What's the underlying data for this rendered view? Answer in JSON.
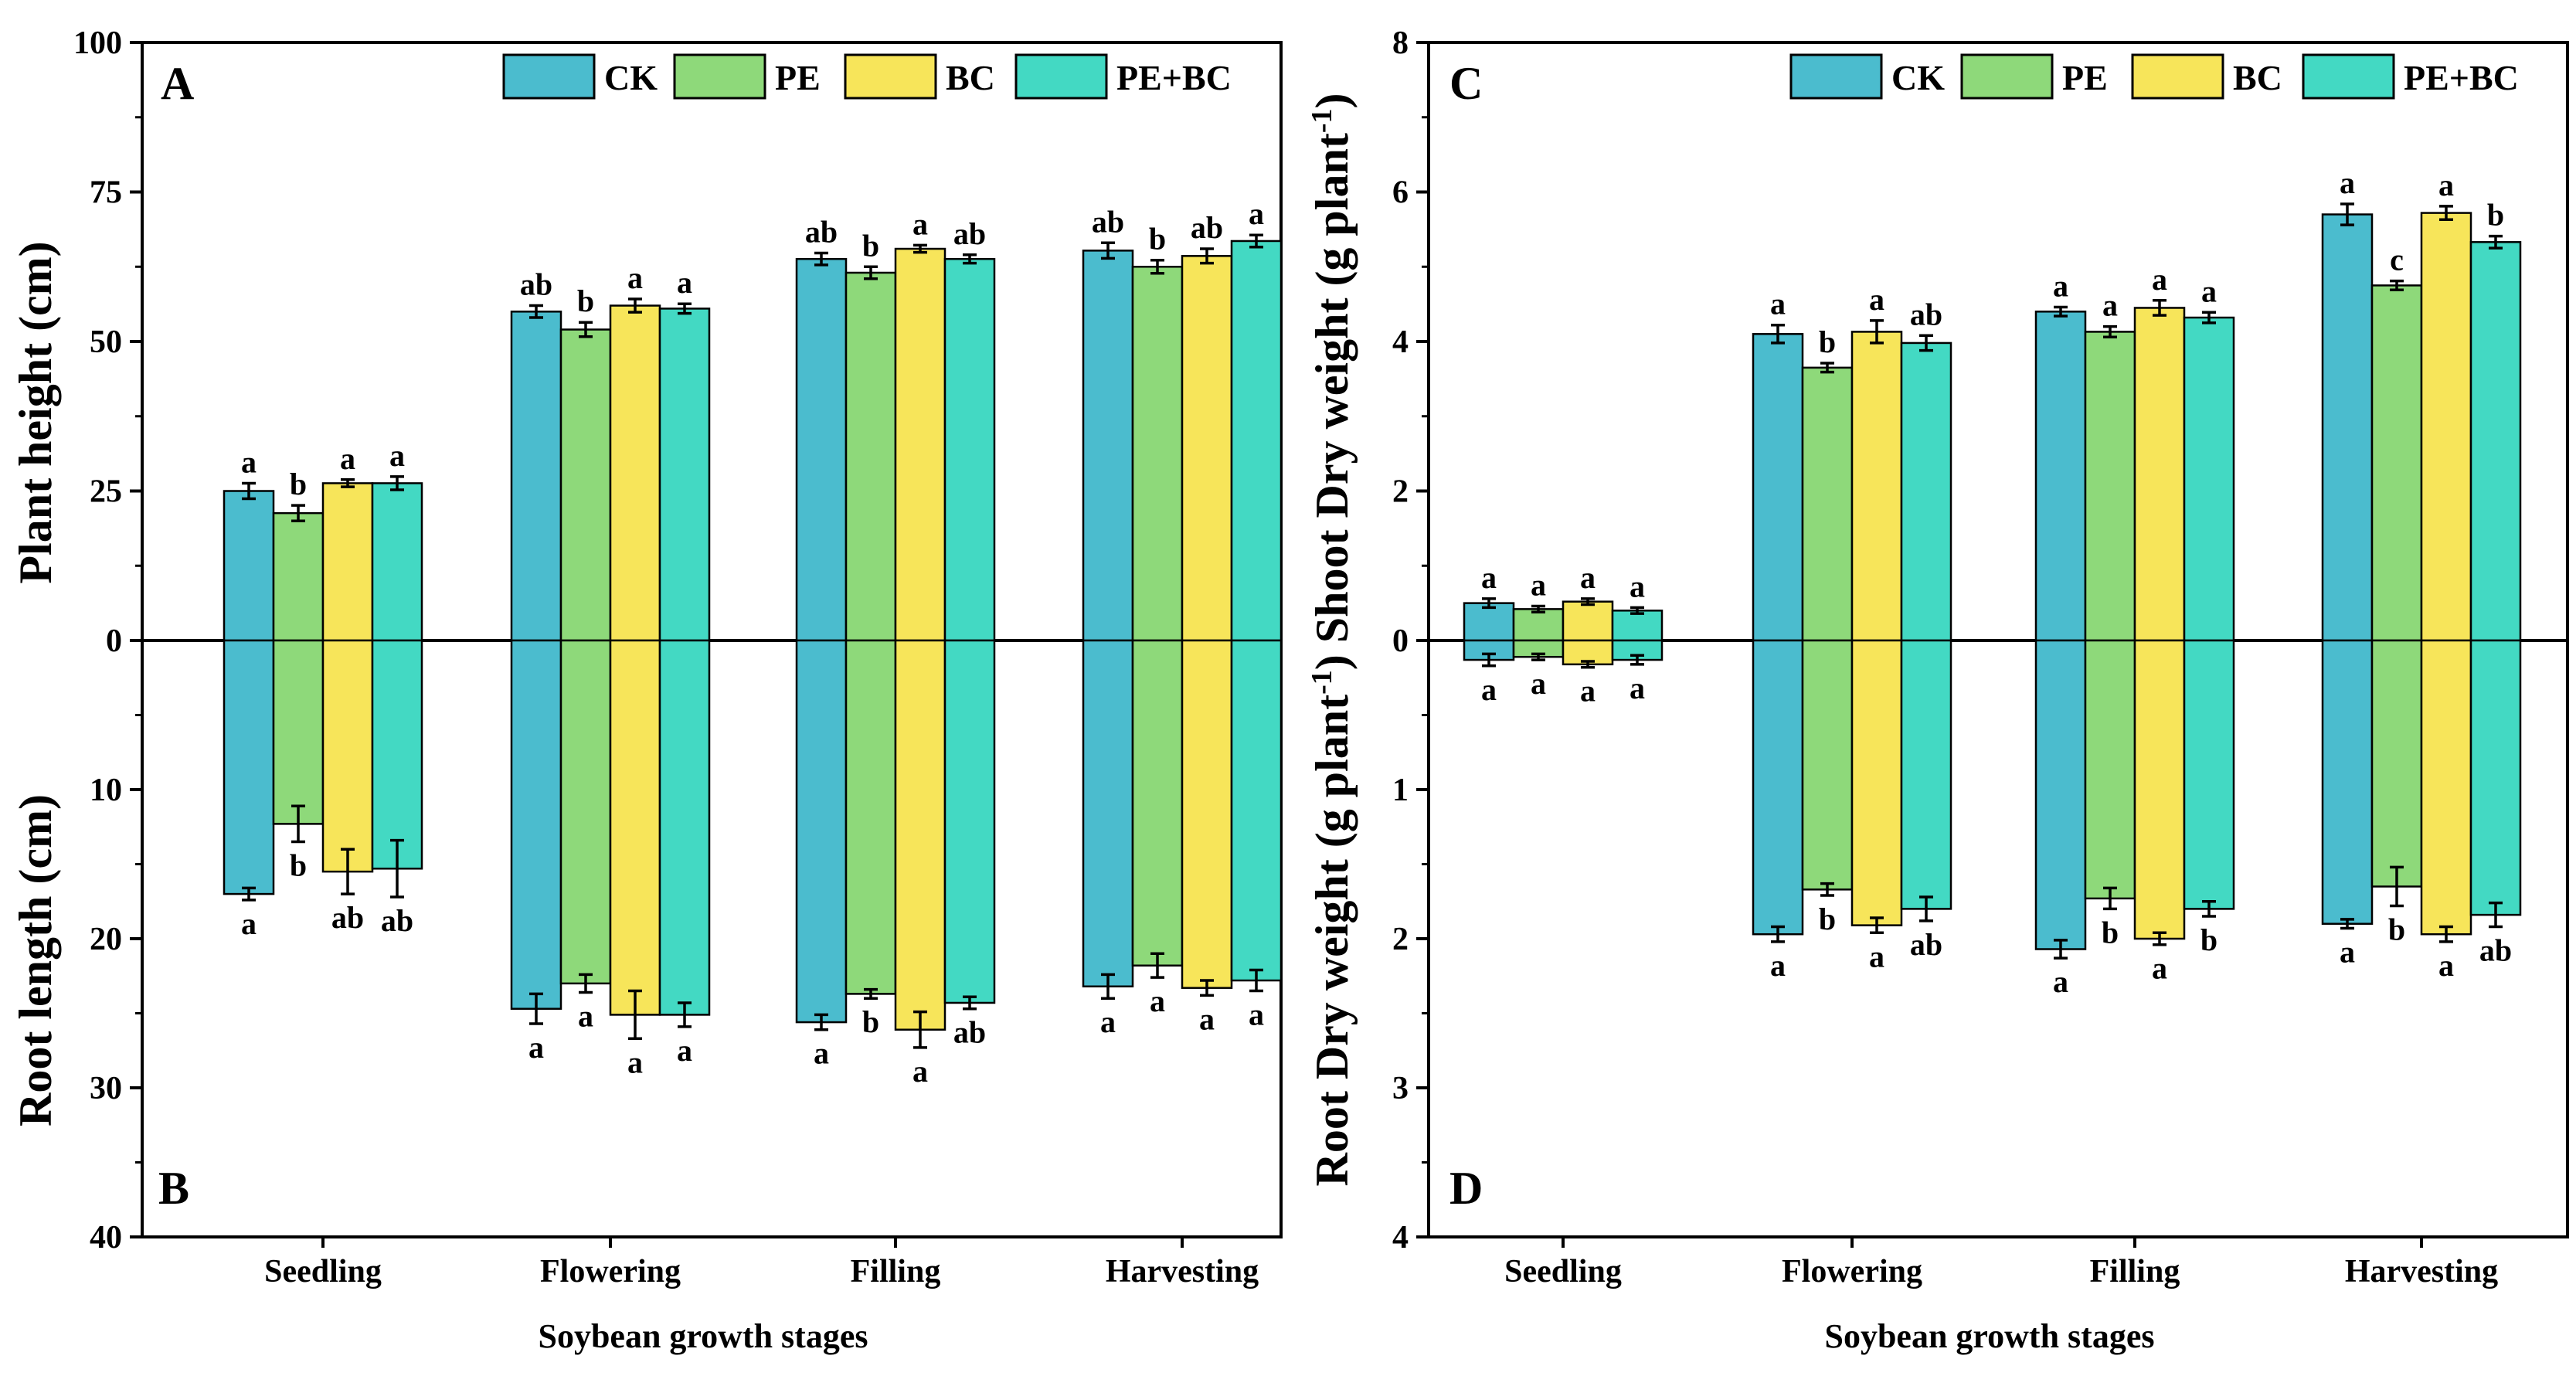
{
  "figure": {
    "x_title": "Soybean growth stages",
    "legend": [
      "CK",
      "PE",
      "BC",
      "PE+BC"
    ]
  },
  "colors": {
    "CK": "#4BBCCE",
    "PE": "#8ED97A",
    "BC": "#F7E55A",
    "PE+BC": "#43D9C3"
  },
  "chart_data": [
    {
      "type": "bar",
      "panel_top": "A",
      "panel_bottom": "B",
      "title": "",
      "ylabel_top": "Plant height (cm)",
      "ylabel_bottom": "Root length (cm)",
      "xlabel": "Soybean growth stages",
      "categories": [
        "Seedling",
        "Flowering",
        "Filling",
        "Harvesting"
      ],
      "top_ylim": [
        0,
        100
      ],
      "top_ticks": [
        "0",
        "25",
        "50",
        "75",
        "100"
      ],
      "bottom_ylim": [
        0,
        40
      ],
      "bottom_ticks": [
        "10",
        "20",
        "30",
        "40"
      ],
      "top_series": [
        {
          "name": "CK",
          "values": [
            25,
            55,
            63.8,
            65.2
          ],
          "errors": [
            1.3,
            1.0,
            1.0,
            1.3
          ],
          "letters": [
            "a",
            "ab",
            "ab",
            "ab"
          ]
        },
        {
          "name": "PE",
          "values": [
            21.3,
            52,
            61.5,
            62.5
          ],
          "errors": [
            1.3,
            1.2,
            1.0,
            1.1
          ],
          "letters": [
            "b",
            "b",
            "b",
            "b"
          ]
        },
        {
          "name": "BC",
          "values": [
            26.3,
            56,
            65.5,
            64.3
          ],
          "errors": [
            0.6,
            1.1,
            0.6,
            1.2
          ],
          "letters": [
            "a",
            "a",
            "a",
            "ab"
          ]
        },
        {
          "name": "PE+BC",
          "values": [
            26.3,
            55.5,
            63.8,
            66.8
          ],
          "errors": [
            1.1,
            0.8,
            0.7,
            1.0
          ],
          "letters": [
            "a",
            "a",
            "ab",
            "a"
          ]
        }
      ],
      "bottom_series": [
        {
          "name": "CK",
          "values": [
            17,
            24.7,
            25.6,
            23.2
          ],
          "errors": [
            0.4,
            1.0,
            0.5,
            0.8
          ],
          "letters": [
            "a",
            "a",
            "a",
            "a"
          ]
        },
        {
          "name": "PE",
          "values": [
            12.3,
            23,
            23.7,
            21.8
          ],
          "errors": [
            1.2,
            0.6,
            0.3,
            0.8
          ],
          "letters": [
            "b",
            "a",
            "b",
            "a"
          ]
        },
        {
          "name": "BC",
          "values": [
            15.5,
            25.1,
            26.1,
            23.3
          ],
          "errors": [
            1.5,
            1.6,
            1.2,
            0.5
          ],
          "letters": [
            "ab",
            "a",
            "a",
            "a"
          ]
        },
        {
          "name": "PE+BC",
          "values": [
            15.3,
            25.1,
            24.3,
            22.8
          ],
          "errors": [
            1.9,
            0.8,
            0.4,
            0.7
          ],
          "letters": [
            "ab",
            "a",
            "ab",
            "a"
          ]
        }
      ]
    },
    {
      "type": "bar",
      "panel_top": "C",
      "panel_bottom": "D",
      "title": "",
      "ylabel": "Root Dry weight (g plant-1) Shoot Dry weight (g plant-1)",
      "xlabel": "Soybean growth stages",
      "categories": [
        "Seedling",
        "Flowering",
        "Filling",
        "Harvesting"
      ],
      "top_ylim": [
        0,
        8
      ],
      "top_ticks": [
        "0",
        "2",
        "4",
        "6",
        "8"
      ],
      "bottom_ylim": [
        0,
        4
      ],
      "bottom_ticks": [
        "1",
        "2",
        "3",
        "4"
      ],
      "top_series": [
        {
          "name": "CK",
          "values": [
            0.5,
            4.1,
            4.4,
            5.7
          ],
          "errors": [
            0.06,
            0.12,
            0.06,
            0.14
          ],
          "letters": [
            "a",
            "a",
            "a",
            "a"
          ]
        },
        {
          "name": "PE",
          "values": [
            0.42,
            3.65,
            4.13,
            4.75
          ],
          "errors": [
            0.04,
            0.06,
            0.07,
            0.06
          ],
          "letters": [
            "a",
            "b",
            "a",
            "c"
          ]
        },
        {
          "name": "BC",
          "values": [
            0.52,
            4.13,
            4.45,
            5.72
          ],
          "errors": [
            0.04,
            0.15,
            0.1,
            0.09
          ],
          "letters": [
            "a",
            "a",
            "a",
            "a"
          ]
        },
        {
          "name": "PE+BC",
          "values": [
            0.4,
            3.98,
            4.32,
            5.33
          ],
          "errors": [
            0.04,
            0.1,
            0.07,
            0.08
          ],
          "letters": [
            "a",
            "ab",
            "a",
            "b"
          ]
        }
      ],
      "bottom_series": [
        {
          "name": "CK",
          "values": [
            0.13,
            1.97,
            2.07,
            1.9
          ],
          "errors": [
            0.04,
            0.05,
            0.06,
            0.03
          ],
          "letters": [
            "a",
            "a",
            "a",
            "a"
          ]
        },
        {
          "name": "PE",
          "values": [
            0.11,
            1.67,
            1.73,
            1.65
          ],
          "errors": [
            0.02,
            0.04,
            0.07,
            0.13
          ],
          "letters": [
            "a",
            "b",
            "b",
            "b"
          ]
        },
        {
          "name": "BC",
          "values": [
            0.16,
            1.91,
            2.0,
            1.97
          ],
          "errors": [
            0.02,
            0.05,
            0.04,
            0.05
          ],
          "letters": [
            "a",
            "a",
            "a",
            "a"
          ]
        },
        {
          "name": "PE+BC",
          "values": [
            0.13,
            1.8,
            1.8,
            1.84
          ],
          "errors": [
            0.03,
            0.08,
            0.05,
            0.08
          ],
          "letters": [
            "a",
            "ab",
            "b",
            "ab"
          ]
        }
      ]
    }
  ]
}
